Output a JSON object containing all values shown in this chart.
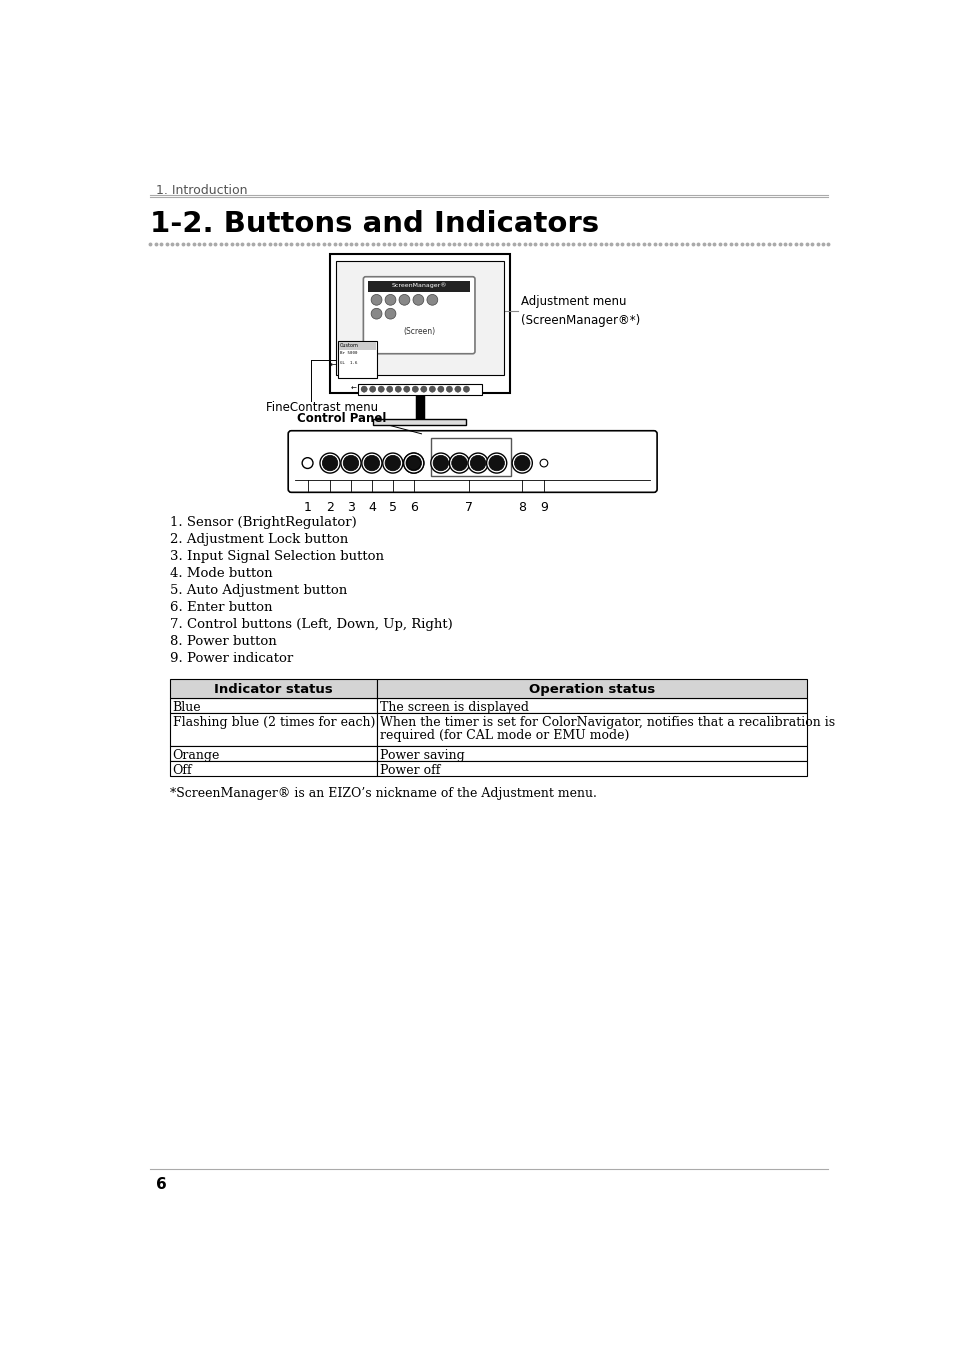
{
  "page_header": "1. Introduction",
  "section_title": "1-2. Buttons and Indicators",
  "bg_color": "#ffffff",
  "list_items": [
    "1. Sensor (BrightRegulator)",
    "2. Adjustment Lock button",
    "3. Input Signal Selection button",
    "4. Mode button",
    "5. Auto Adjustment button",
    "6. Enter button",
    "7. Control buttons (Left, Down, Up, Right)",
    "8. Power button",
    "9. Power indicator"
  ],
  "table_header": [
    "Indicator status",
    "Operation status"
  ],
  "table_rows": [
    [
      "Blue",
      "The screen is displayed"
    ],
    [
      "Flashing blue (2 times for each)",
      "When the timer is set for ColorNavigator, notifies that a recalibration is\nrequired (for CAL mode or EMU mode)"
    ],
    [
      "Orange",
      "Power saving"
    ],
    [
      "Off",
      "Power off"
    ]
  ],
  "table_header_bg": "#d4d4d4",
  "footnote": "*ScreenManager® is an EIZO’s nickname of the Adjustment menu.",
  "footer_text": "6",
  "diagram_label_adj_line1": "Adjustment menu",
  "diagram_label_adj_line2": "(ScreenManager®*)",
  "diagram_label_fine": "FineContrast menu",
  "diagram_label_panel": "Control Panel"
}
